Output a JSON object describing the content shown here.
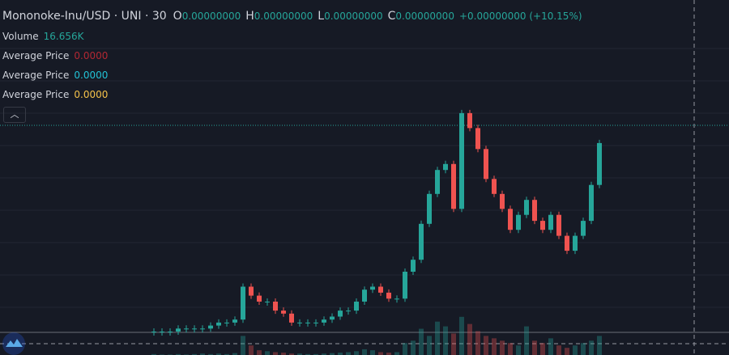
{
  "header": {
    "symbol": "Mononoke-Inu/USD · UNI · 30",
    "ohlc": [
      {
        "key": "O",
        "value": "0.00000000"
      },
      {
        "key": "H",
        "value": "0.00000000"
      },
      {
        "key": "L",
        "value": "0.00000000"
      },
      {
        "key": "C",
        "value": "0.00000000"
      }
    ],
    "change": "+0.00000000 (+10.15%)"
  },
  "indicators": [
    {
      "name": "Volume",
      "value": "16.656K",
      "color": "#26a69a"
    },
    {
      "name": "Average Price",
      "value": "0.0000",
      "color": "#b22833"
    },
    {
      "name": "Average Price",
      "value": "0.0000",
      "color": "#22c2d6"
    },
    {
      "name": "Average Price",
      "value": "0.0000",
      "color": "#f5c24a"
    }
  ],
  "chart_data": {
    "type": "candlestick",
    "up_color": "#26a69a",
    "down_color": "#ef5350",
    "values": [
      0,
      0,
      0,
      1,
      1,
      1,
      1,
      2,
      3,
      3,
      4,
      15,
      12,
      10,
      10,
      7,
      6,
      3,
      3,
      3,
      3,
      4,
      5,
      7,
      7,
      10,
      14,
      15,
      13,
      11,
      11,
      20,
      24,
      36,
      46,
      54,
      56,
      41,
      73,
      68,
      61,
      51,
      46,
      41,
      34,
      39,
      44,
      37,
      34,
      39,
      32,
      27,
      32,
      37,
      49,
      63
    ],
    "volume": [
      2,
      1,
      1,
      2,
      1,
      2,
      3,
      2,
      3,
      2,
      4,
      40,
      20,
      10,
      8,
      6,
      5,
      3,
      3,
      2,
      2,
      3,
      4,
      5,
      6,
      8,
      12,
      10,
      6,
      5,
      6,
      25,
      30,
      55,
      40,
      70,
      60,
      45,
      80,
      65,
      50,
      40,
      35,
      30,
      25,
      20,
      60,
      30,
      25,
      35,
      20,
      15,
      20,
      25,
      30,
      40
    ],
    "ylim": [
      0,
      100
    ],
    "vlim": [
      0,
      100
    ]
  }
}
